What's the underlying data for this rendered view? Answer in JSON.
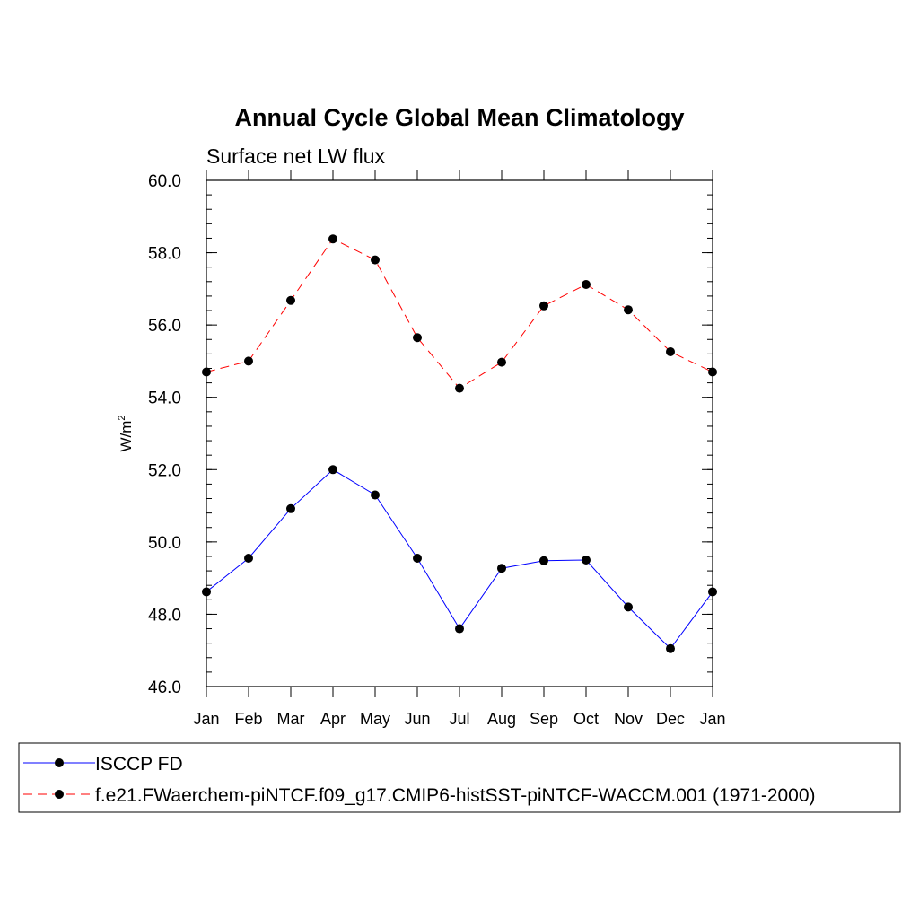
{
  "chart_data": {
    "type": "line",
    "title": "Annual Cycle Global Mean Climatology",
    "subtitle": "Surface net LW flux",
    "ylabel": "W/m",
    "ylabel_superscript": "2",
    "xlabel": "",
    "categories": [
      "Jan",
      "Feb",
      "Mar",
      "Apr",
      "May",
      "Jun",
      "Jul",
      "Aug",
      "Sep",
      "Oct",
      "Nov",
      "Dec",
      "Jan"
    ],
    "ylim": [
      46.0,
      60.0
    ],
    "yticks": [
      "46.0",
      "48.0",
      "50.0",
      "52.0",
      "54.0",
      "56.0",
      "58.0",
      "60.0"
    ],
    "grid": false,
    "legend_position": "bottom",
    "series": [
      {
        "name": "ISCCP FD",
        "color": "#0000ff",
        "dash": "solid",
        "values": [
          48.62,
          49.55,
          50.92,
          52.0,
          51.3,
          49.55,
          47.6,
          49.27,
          49.48,
          49.5,
          48.2,
          47.05,
          48.62
        ]
      },
      {
        "name": "f.e21.FWaerchem-piNTCF.f09_g17.CMIP6-histSST-piNTCF-WACCM.001 (1971-2000)",
        "color": "#ff0000",
        "dash": "dashed",
        "values": [
          54.7,
          55.0,
          56.68,
          58.38,
          57.8,
          55.65,
          54.25,
          54.97,
          56.53,
          57.12,
          56.42,
          55.26,
          54.7
        ]
      }
    ]
  }
}
